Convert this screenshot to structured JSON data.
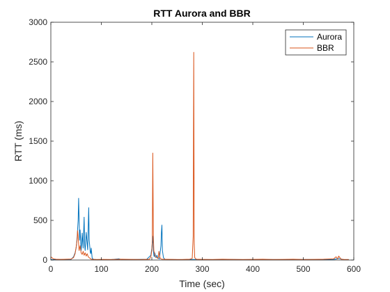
{
  "chart_data": {
    "type": "line",
    "title": "RTT Aurora and BBR",
    "xlabel": "Time (sec)",
    "ylabel": "RTT (ms)",
    "xlim": [
      0,
      600
    ],
    "ylim": [
      0,
      3000
    ],
    "xticks": [
      0,
      100,
      200,
      300,
      400,
      500,
      600
    ],
    "yticks": [
      0,
      500,
      1000,
      1500,
      2000,
      2500,
      3000
    ],
    "grid": false,
    "legend_position": "top-right",
    "series": [
      {
        "name": "Aurora",
        "color": "#0072BD",
        "x": [
          0,
          10,
          20,
          30,
          40,
          45,
          48,
          50,
          52,
          54,
          55,
          56,
          57,
          58,
          60,
          61,
          62,
          64,
          66,
          67,
          68,
          70,
          72,
          73,
          74,
          75,
          76,
          78,
          79,
          80,
          82,
          85,
          90,
          100,
          120,
          135,
          140,
          150,
          170,
          190,
          198,
          200,
          202,
          203,
          204,
          205,
          206,
          208,
          210,
          212,
          215,
          218,
          219,
          220,
          221,
          223,
          226,
          230,
          240,
          260,
          280,
          300,
          320,
          340,
          360,
          380,
          400,
          420,
          440,
          460,
          480,
          500,
          520,
          540,
          560,
          570,
          580,
          590
        ],
        "values": [
          5,
          4,
          6,
          5,
          8,
          40,
          90,
          150,
          280,
          500,
          780,
          520,
          250,
          380,
          120,
          200,
          340,
          150,
          540,
          180,
          120,
          350,
          200,
          130,
          420,
          660,
          250,
          100,
          80,
          150,
          20,
          8,
          5,
          4,
          5,
          15,
          5,
          4,
          6,
          10,
          60,
          150,
          300,
          120,
          60,
          40,
          90,
          30,
          60,
          25,
          15,
          180,
          350,
          440,
          120,
          30,
          10,
          6,
          5,
          4,
          6,
          5,
          4,
          5,
          6,
          4,
          5,
          6,
          5,
          4,
          5,
          6,
          5,
          4,
          6,
          20,
          5,
          4
        ]
      },
      {
        "name": "BBR",
        "color": "#D95319",
        "x": [
          0,
          5,
          10,
          20,
          30,
          40,
          45,
          48,
          50,
          52,
          53,
          54,
          55,
          56,
          58,
          60,
          62,
          64,
          66,
          68,
          70,
          72,
          74,
          76,
          78,
          80,
          85,
          90,
          100,
          120,
          140,
          160,
          180,
          195,
          198,
          200,
          201,
          202,
          203,
          204,
          206,
          208,
          210,
          212,
          213,
          214,
          216,
          218,
          220,
          240,
          260,
          275,
          280,
          282,
          283,
          284,
          285,
          288,
          300,
          320,
          340,
          360,
          380,
          400,
          420,
          440,
          460,
          480,
          500,
          520,
          540,
          560,
          565,
          568,
          570,
          575,
          580,
          590
        ],
        "values": [
          40,
          15,
          10,
          8,
          10,
          12,
          30,
          80,
          160,
          250,
          370,
          300,
          200,
          120,
          180,
          90,
          70,
          110,
          60,
          90,
          50,
          80,
          40,
          30,
          20,
          10,
          8,
          6,
          8,
          6,
          10,
          8,
          6,
          10,
          40,
          120,
          240,
          1350,
          300,
          120,
          60,
          40,
          30,
          20,
          40,
          110,
          30,
          15,
          10,
          8,
          6,
          10,
          20,
          300,
          2620,
          200,
          30,
          10,
          8,
          6,
          10,
          8,
          6,
          8,
          10,
          6,
          8,
          10,
          6,
          8,
          10,
          15,
          40,
          15,
          50,
          10,
          8,
          6
        ]
      }
    ]
  }
}
